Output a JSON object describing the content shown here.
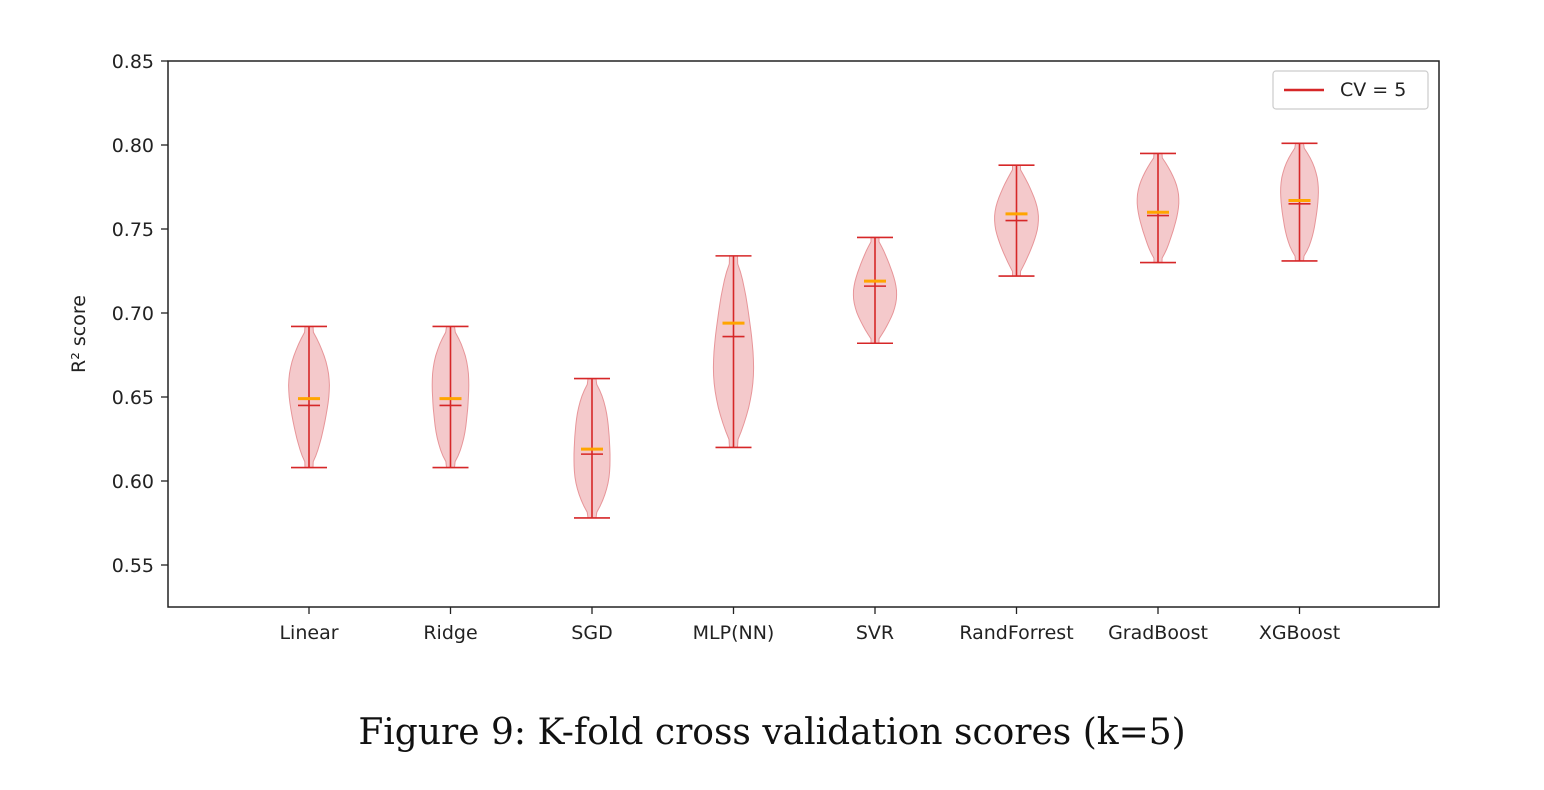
{
  "caption": "Figure 9: K-fold cross validation scores (k=5)",
  "colors": {
    "violin_fill": "#f3c4c6",
    "violin_edge": "#e58a8e",
    "whisker": "#d62728",
    "mean": "#ffa500",
    "axis": "#222222"
  },
  "chart_data": {
    "type": "violin",
    "title": "",
    "xlabel": "",
    "ylabel": "R² score",
    "ylim": [
      0.525,
      0.85
    ],
    "yticks": [
      0.55,
      0.6,
      0.65,
      0.7,
      0.75,
      0.8,
      0.85
    ],
    "ytick_labels": [
      "0.55",
      "0.60",
      "0.65",
      "0.70",
      "0.75",
      "0.80",
      "0.85"
    ],
    "grid": false,
    "legend": {
      "entries": [
        "CV = 5"
      ],
      "placement": "top-right"
    },
    "categories": [
      "Linear",
      "Ridge",
      "SGD",
      "MLP(NN)",
      "SVR",
      "RandForrest",
      "GradBoost",
      "XGBoost"
    ],
    "series": [
      {
        "name": "CV = 5",
        "min": [
          0.608,
          0.608,
          0.578,
          0.62,
          0.682,
          0.722,
          0.73,
          0.731
        ],
        "max": [
          0.692,
          0.692,
          0.661,
          0.734,
          0.745,
          0.788,
          0.795,
          0.801
        ],
        "median": [
          0.645,
          0.645,
          0.616,
          0.686,
          0.716,
          0.755,
          0.758,
          0.765
        ],
        "mean": [
          0.649,
          0.649,
          0.619,
          0.694,
          0.719,
          0.759,
          0.76,
          0.767
        ]
      }
    ]
  }
}
